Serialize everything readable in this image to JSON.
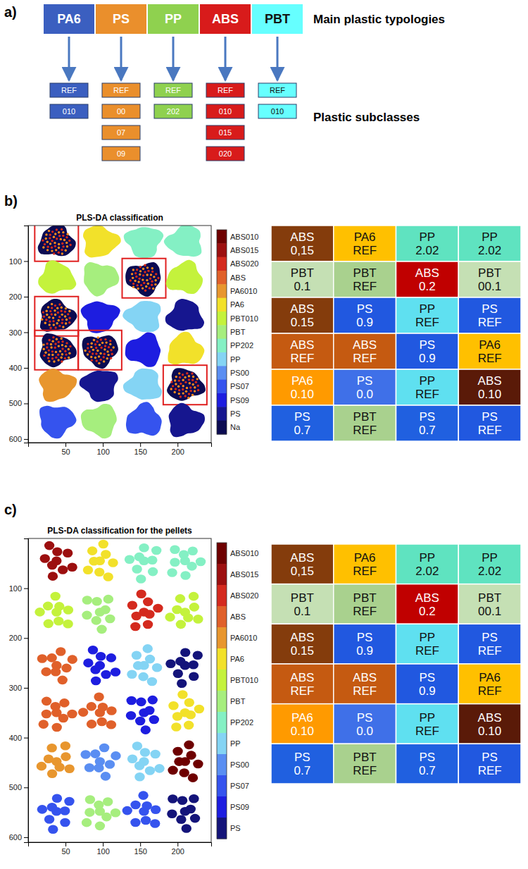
{
  "diagram": {
    "letter": "a)",
    "typology_label": "Main plastic typologies",
    "subclass_label": "Plastic subclasses",
    "typologies": [
      {
        "name": "PA6",
        "color": "#3b5fc0",
        "subclasses": [
          "REF",
          "010"
        ]
      },
      {
        "name": "PS",
        "color": "#ea8f2c",
        "subclasses": [
          "REF",
          "00",
          "07",
          "09"
        ]
      },
      {
        "name": "PP",
        "color": "#8fd14f",
        "subclasses": [
          "REF",
          "202"
        ]
      },
      {
        "name": "ABS",
        "color": "#d81b1b",
        "subclasses": [
          "REF",
          "010",
          "015",
          "020"
        ]
      },
      {
        "name": "PBT",
        "color": "#66ffff",
        "subclasses": [
          "REF",
          "010"
        ]
      }
    ]
  },
  "chart_data": [
    {
      "type": "classification_map",
      "letter": "b)",
      "title": "PLS-DA classification",
      "marker": "blob",
      "xlim": [
        0,
        245
      ],
      "xticks": [
        50,
        100,
        150,
        200
      ],
      "ylim": [
        610,
        0
      ],
      "yticks": [
        100,
        200,
        300,
        400,
        500,
        600
      ],
      "classes": [
        {
          "name": "ABS010",
          "color": "#6e0000"
        },
        {
          "name": "ABS015",
          "color": "#9c0f0f"
        },
        {
          "name": "ABS020",
          "color": "#d42a1e"
        },
        {
          "name": "ABS",
          "color": "#e0602a"
        },
        {
          "name": "PA6010",
          "color": "#e8962e"
        },
        {
          "name": "PA6",
          "color": "#f2e12a"
        },
        {
          "name": "PBT010",
          "color": "#c4f23c"
        },
        {
          "name": "PBT",
          "color": "#a6ee7e"
        },
        {
          "name": "PP202",
          "color": "#84f0c4"
        },
        {
          "name": "PP",
          "color": "#84d4f4"
        },
        {
          "name": "PS00",
          "color": "#5a8ef2"
        },
        {
          "name": "PS07",
          "color": "#3553ee"
        },
        {
          "name": "PS09",
          "color": "#1d1de0"
        },
        {
          "name": "PS",
          "color": "#16168f"
        },
        {
          "name": "Na",
          "color": "#0b0b52"
        }
      ],
      "samples": [
        {
          "x": 38,
          "y": 45,
          "class": "Na",
          "outlined": true
        },
        {
          "x": 96,
          "y": 45,
          "class": "PA6",
          "outlined": false
        },
        {
          "x": 155,
          "y": 45,
          "class": "PP202",
          "outlined": false
        },
        {
          "x": 210,
          "y": 45,
          "class": "PP202",
          "outlined": false
        },
        {
          "x": 38,
          "y": 148,
          "class": "PBT010",
          "outlined": false
        },
        {
          "x": 96,
          "y": 148,
          "class": "PBT",
          "outlined": false
        },
        {
          "x": 155,
          "y": 148,
          "class": "Na",
          "outlined": true
        },
        {
          "x": 210,
          "y": 148,
          "class": "PBT010",
          "outlined": false
        },
        {
          "x": 38,
          "y": 255,
          "class": "Na",
          "outlined": true
        },
        {
          "x": 96,
          "y": 255,
          "class": "PS09",
          "outlined": false
        },
        {
          "x": 155,
          "y": 255,
          "class": "PP",
          "outlined": false
        },
        {
          "x": 210,
          "y": 255,
          "class": "PS",
          "outlined": false
        },
        {
          "x": 38,
          "y": 350,
          "class": "Na",
          "outlined": true
        },
        {
          "x": 96,
          "y": 350,
          "class": "Na",
          "outlined": true
        },
        {
          "x": 155,
          "y": 350,
          "class": "PS09",
          "outlined": false
        },
        {
          "x": 210,
          "y": 350,
          "class": "PA6",
          "outlined": false
        },
        {
          "x": 38,
          "y": 448,
          "class": "PA6010",
          "outlined": false
        },
        {
          "x": 96,
          "y": 448,
          "class": "PS",
          "outlined": false
        },
        {
          "x": 155,
          "y": 448,
          "class": "PP",
          "outlined": false
        },
        {
          "x": 210,
          "y": 448,
          "class": "Na",
          "outlined": true
        },
        {
          "x": 38,
          "y": 548,
          "class": "PS07",
          "outlined": false
        },
        {
          "x": 96,
          "y": 548,
          "class": "PBT",
          "outlined": false
        },
        {
          "x": 155,
          "y": 548,
          "class": "PS07",
          "outlined": false
        },
        {
          "x": 210,
          "y": 548,
          "class": "PS",
          "outlined": false
        }
      ],
      "sample_table": [
        [
          {
            "text": [
              "ABS",
              "0,15"
            ],
            "color": "#843c0c"
          },
          {
            "text": [
              "PA6",
              "REF"
            ],
            "color": "#ffc000"
          },
          {
            "text": [
              "PP",
              "2.02"
            ],
            "color": "#5fe3c0"
          },
          {
            "text": [
              "PP",
              "2.02"
            ],
            "color": "#5fe3c0"
          }
        ],
        [
          {
            "text": [
              "PBT",
              "0.1"
            ],
            "color": "#c5e0b4"
          },
          {
            "text": [
              "PBT",
              "REF"
            ],
            "color": "#a9d18e"
          },
          {
            "text": [
              "ABS",
              "0.2"
            ],
            "color": "#c00000"
          },
          {
            "text": [
              "PBT",
              "00.1"
            ],
            "color": "#c5e0b4"
          }
        ],
        [
          {
            "text": [
              "ABS",
              "0.15"
            ],
            "color": "#843c0c"
          },
          {
            "text": [
              "PS",
              "0.9"
            ],
            "color": "#2158e0"
          },
          {
            "text": [
              "PP",
              "REF"
            ],
            "color": "#5fe0f0"
          },
          {
            "text": [
              "PS",
              "REF"
            ],
            "color": "#2158e0"
          }
        ],
        [
          {
            "text": [
              "ABS",
              "REF"
            ],
            "color": "#c55a11"
          },
          {
            "text": [
              "ABS",
              "REF"
            ],
            "color": "#c55a11"
          },
          {
            "text": [
              "PS",
              "0.9"
            ],
            "color": "#2158e0"
          },
          {
            "text": [
              "PA6",
              "REF"
            ],
            "color": "#ffc000"
          }
        ],
        [
          {
            "text": [
              "PA6",
              "0.10"
            ],
            "color": "#ff9a00"
          },
          {
            "text": [
              "PS",
              "0.0"
            ],
            "color": "#3f70e8"
          },
          {
            "text": [
              "PP",
              "REF"
            ],
            "color": "#5fe0f0"
          },
          {
            "text": [
              "ABS",
              "0.10"
            ],
            "color": "#5a1a08"
          }
        ],
        [
          {
            "text": [
              "PS",
              "0.7"
            ],
            "color": "#2060e0"
          },
          {
            "text": [
              "PBT",
              "REF"
            ],
            "color": "#a9d18e"
          },
          {
            "text": [
              "PS",
              "0.7"
            ],
            "color": "#2060e0"
          },
          {
            "text": [
              "PS",
              "REF"
            ],
            "color": "#2158e0"
          }
        ]
      ]
    },
    {
      "type": "classification_map",
      "letter": "c)",
      "title": "PLS-DA classification for the pellets",
      "marker": "pellet",
      "xlim": [
        0,
        245
      ],
      "xticks": [
        50,
        100,
        150,
        200
      ],
      "ylim": [
        610,
        0
      ],
      "yticks": [
        100,
        200,
        300,
        400,
        500,
        600
      ],
      "classes": [
        {
          "name": "ABS010",
          "color": "#6e0000"
        },
        {
          "name": "ABS015",
          "color": "#9c0f0f"
        },
        {
          "name": "ABS020",
          "color": "#d42a1e"
        },
        {
          "name": "ABS",
          "color": "#e0602a"
        },
        {
          "name": "PA6010",
          "color": "#e8962e"
        },
        {
          "name": "PA6",
          "color": "#f2e12a"
        },
        {
          "name": "PBT010",
          "color": "#c4f23c"
        },
        {
          "name": "PBT",
          "color": "#a6ee7e"
        },
        {
          "name": "PP202",
          "color": "#84f0c4"
        },
        {
          "name": "PP",
          "color": "#84d4f4"
        },
        {
          "name": "PS00",
          "color": "#5a8ef2"
        },
        {
          "name": "PS07",
          "color": "#3553ee"
        },
        {
          "name": "PS09",
          "color": "#1d1de0"
        },
        {
          "name": "PS",
          "color": "#14147a"
        }
      ],
      "samples": [
        {
          "x": 38,
          "y": 45,
          "class": "ABS015",
          "outlined": false
        },
        {
          "x": 96,
          "y": 45,
          "class": "PA6",
          "outlined": false
        },
        {
          "x": 155,
          "y": 45,
          "class": "PP202",
          "outlined": false
        },
        {
          "x": 210,
          "y": 45,
          "class": "PP202",
          "outlined": false
        },
        {
          "x": 38,
          "y": 148,
          "class": "PBT010",
          "outlined": false
        },
        {
          "x": 96,
          "y": 148,
          "class": "PBT",
          "outlined": false
        },
        {
          "x": 155,
          "y": 148,
          "class": "ABS020",
          "outlined": false
        },
        {
          "x": 210,
          "y": 148,
          "class": "PBT010",
          "outlined": false
        },
        {
          "x": 38,
          "y": 255,
          "class": "ABS",
          "outlined": false
        },
        {
          "x": 96,
          "y": 255,
          "class": "PS09",
          "outlined": false
        },
        {
          "x": 155,
          "y": 255,
          "class": "PP",
          "outlined": false
        },
        {
          "x": 210,
          "y": 255,
          "class": "PS",
          "outlined": false
        },
        {
          "x": 38,
          "y": 350,
          "class": "ABS",
          "outlined": false
        },
        {
          "x": 96,
          "y": 350,
          "class": "ABS",
          "outlined": false
        },
        {
          "x": 155,
          "y": 350,
          "class": "PS09",
          "outlined": false
        },
        {
          "x": 210,
          "y": 350,
          "class": "PA6",
          "outlined": false
        },
        {
          "x": 38,
          "y": 448,
          "class": "PA6010",
          "outlined": false
        },
        {
          "x": 96,
          "y": 448,
          "class": "PS00",
          "outlined": false
        },
        {
          "x": 155,
          "y": 448,
          "class": "PP",
          "outlined": false
        },
        {
          "x": 210,
          "y": 448,
          "class": "ABS010",
          "outlined": false
        },
        {
          "x": 38,
          "y": 548,
          "class": "PS07",
          "outlined": false
        },
        {
          "x": 96,
          "y": 548,
          "class": "PBT",
          "outlined": false
        },
        {
          "x": 155,
          "y": 548,
          "class": "PS07",
          "outlined": false
        },
        {
          "x": 210,
          "y": 548,
          "class": "PS",
          "outlined": false
        }
      ],
      "sample_table": [
        [
          {
            "text": [
              "ABS",
              "0,15"
            ],
            "color": "#843c0c"
          },
          {
            "text": [
              "PA6",
              "REF"
            ],
            "color": "#ffc000"
          },
          {
            "text": [
              "PP",
              "2.02"
            ],
            "color": "#5fe3c0"
          },
          {
            "text": [
              "PP",
              "2.02"
            ],
            "color": "#5fe3c0"
          }
        ],
        [
          {
            "text": [
              "PBT",
              "0.1"
            ],
            "color": "#c5e0b4"
          },
          {
            "text": [
              "PBT",
              "REF"
            ],
            "color": "#a9d18e"
          },
          {
            "text": [
              "ABS",
              "0.2"
            ],
            "color": "#c00000"
          },
          {
            "text": [
              "PBT",
              "00.1"
            ],
            "color": "#c5e0b4"
          }
        ],
        [
          {
            "text": [
              "ABS",
              "0.15"
            ],
            "color": "#843c0c"
          },
          {
            "text": [
              "PS",
              "0.9"
            ],
            "color": "#2158e0"
          },
          {
            "text": [
              "PP",
              "REF"
            ],
            "color": "#5fe0f0"
          },
          {
            "text": [
              "PS",
              "REF"
            ],
            "color": "#2158e0"
          }
        ],
        [
          {
            "text": [
              "ABS",
              "REF"
            ],
            "color": "#c55a11"
          },
          {
            "text": [
              "ABS",
              "REF"
            ],
            "color": "#c55a11"
          },
          {
            "text": [
              "PS",
              "0.9"
            ],
            "color": "#2158e0"
          },
          {
            "text": [
              "PA6",
              "REF"
            ],
            "color": "#ffc000"
          }
        ],
        [
          {
            "text": [
              "PA6",
              "0.10"
            ],
            "color": "#ff9a00"
          },
          {
            "text": [
              "PS",
              "0.0"
            ],
            "color": "#3f70e8"
          },
          {
            "text": [
              "PP",
              "REF"
            ],
            "color": "#5fe0f0"
          },
          {
            "text": [
              "ABS",
              "0.10"
            ],
            "color": "#5a1a08"
          }
        ],
        [
          {
            "text": [
              "PS",
              "0.7"
            ],
            "color": "#2060e0"
          },
          {
            "text": [
              "PBT",
              "REF"
            ],
            "color": "#a9d18e"
          },
          {
            "text": [
              "PS",
              "0.7"
            ],
            "color": "#2060e0"
          },
          {
            "text": [
              "PS",
              "REF"
            ],
            "color": "#2158e0"
          }
        ]
      ]
    }
  ]
}
